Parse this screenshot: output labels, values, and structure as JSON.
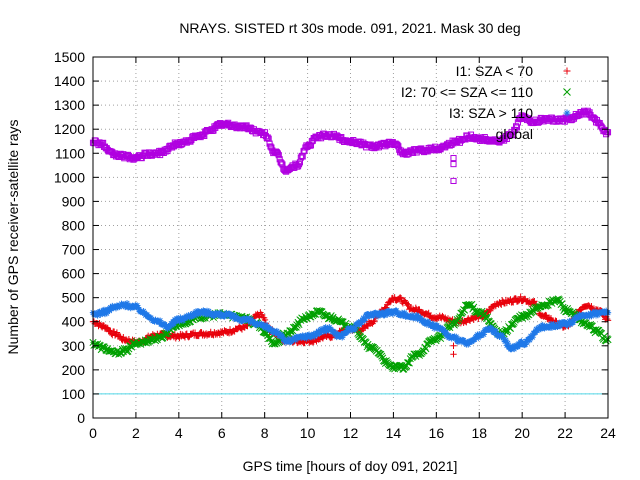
{
  "chart_data": {
    "type": "scatter",
    "title": "NRAYS. SISTED rt 30s mode. 091, 2021. Mask 30 deg",
    "xlabel": "GPS time [hours of doy 091, 2021]",
    "ylabel": "Number of GPS receiver-satellite rays",
    "xlim": [
      0,
      24
    ],
    "ylim": [
      0,
      1500
    ],
    "xticks": [
      "0",
      "2",
      "4",
      "6",
      "8",
      "10",
      "12",
      "14",
      "16",
      "18",
      "20",
      "22",
      "24"
    ],
    "yticks": [
      "0",
      "100",
      "200",
      "300",
      "400",
      "500",
      "600",
      "700",
      "800",
      "900",
      "1000",
      "1100",
      "1200",
      "1300",
      "1400",
      "1500"
    ],
    "grid": true,
    "legend_position": "top-right",
    "reference_line": {
      "y": 100,
      "color": "#4fd7e8"
    },
    "series": [
      {
        "name": "I1: SZA < 70",
        "marker": "+",
        "color": "#e8000b",
        "x": [
          0,
          0.5,
          1,
          1.5,
          2,
          3,
          4,
          5,
          6,
          7,
          7.8,
          8.3,
          9,
          10,
          11,
          12,
          12.5,
          13,
          13.5,
          14,
          14.2,
          15,
          16,
          17,
          18,
          19,
          20,
          20.5,
          21,
          22,
          23,
          23.5,
          24
        ],
        "y": [
          400,
          380,
          350,
          325,
          315,
          345,
          340,
          350,
          355,
          375,
          430,
          360,
          320,
          320,
          340,
          370,
          365,
          400,
          450,
          500,
          495,
          450,
          420,
          400,
          420,
          480,
          495,
          480,
          420,
          380,
          470,
          450,
          410
        ]
      },
      {
        "name": "I2: 70 <= SZA <= 110",
        "marker": "x",
        "color": "#00a000",
        "x": [
          0,
          0.5,
          1,
          1.5,
          2,
          3,
          4,
          5,
          6,
          7,
          7.6,
          8.5,
          9,
          10,
          10.5,
          11,
          12,
          13,
          14,
          14.5,
          15,
          16,
          16.8,
          17.5,
          18,
          19,
          20,
          21,
          21.7,
          22,
          23,
          23.5,
          24
        ],
        "y": [
          310,
          290,
          270,
          280,
          310,
          330,
          390,
          420,
          430,
          420,
          390,
          310,
          350,
          420,
          440,
          420,
          380,
          290,
          210,
          210,
          260,
          330,
          390,
          470,
          440,
          350,
          420,
          470,
          490,
          450,
          390,
          360,
          320
        ]
      },
      {
        "name": "I3: SZA > 110",
        "marker": "*",
        "color": "#1f78e8",
        "x": [
          0,
          0.5,
          1,
          1.5,
          2,
          2.5,
          3,
          3.5,
          4,
          5,
          6,
          7,
          8,
          8.5,
          9,
          10,
          11,
          11.5,
          12,
          13,
          14,
          15,
          16,
          16.8,
          17.5,
          18,
          18.5,
          19,
          19.5,
          20,
          21,
          22,
          23,
          24
        ],
        "y": [
          430,
          440,
          460,
          470,
          460,
          430,
          400,
          380,
          410,
          440,
          430,
          410,
          380,
          360,
          320,
          340,
          370,
          340,
          370,
          430,
          440,
          420,
          380,
          330,
          310,
          340,
          370,
          340,
          290,
          310,
          380,
          390,
          430,
          440
        ]
      },
      {
        "name": "global",
        "marker": "square",
        "color": "#b000e0",
        "x": [
          0,
          0.4,
          0.8,
          1.2,
          2,
          2.5,
          3,
          4,
          5,
          5.5,
          6,
          7,
          8,
          8.5,
          9,
          9.5,
          10,
          10.5,
          11,
          12,
          13,
          14,
          14.5,
          15,
          16,
          17,
          17.5,
          18,
          19,
          19.5,
          20,
          20.5,
          21,
          22,
          23,
          23.5,
          24
        ],
        "y": [
          1150,
          1140,
          1100,
          1090,
          1080,
          1095,
          1100,
          1140,
          1170,
          1200,
          1220,
          1210,
          1180,
          1100,
          1030,
          1050,
          1130,
          1170,
          1175,
          1150,
          1130,
          1140,
          1100,
          1110,
          1120,
          1150,
          1170,
          1160,
          1150,
          1180,
          1250,
          1230,
          1240,
          1240,
          1270,
          1230,
          1180
        ]
      }
    ],
    "outliers": [
      {
        "series": 3,
        "x": 16.8,
        "y": 985
      },
      {
        "series": 3,
        "x": 16.8,
        "y": 1055
      },
      {
        "series": 3,
        "x": 16.8,
        "y": 1080
      },
      {
        "series": 0,
        "x": 16.8,
        "y": 265
      },
      {
        "series": 0,
        "x": 16.8,
        "y": 300
      }
    ]
  }
}
